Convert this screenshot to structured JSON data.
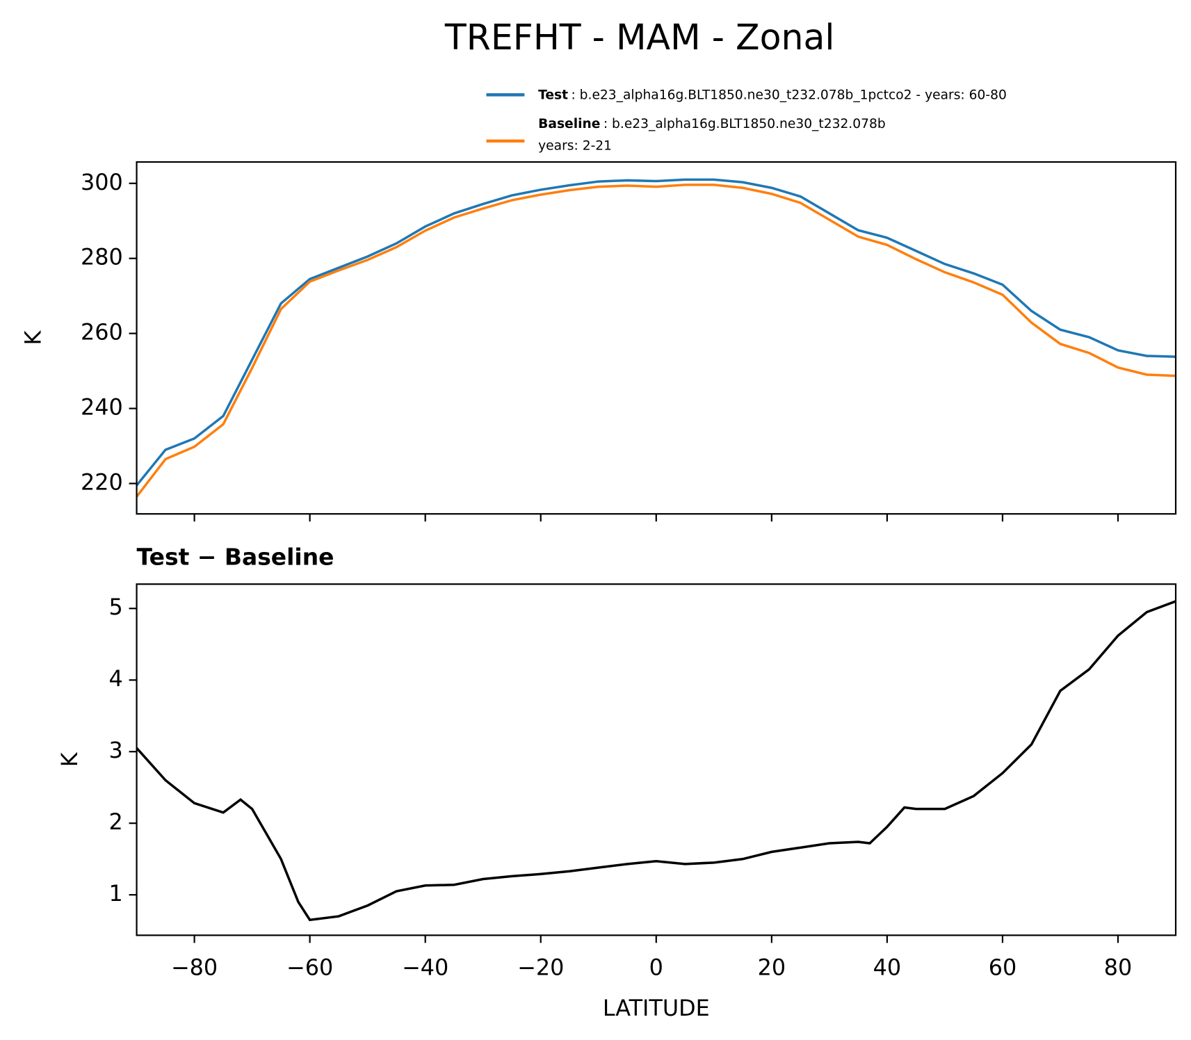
{
  "title": "TREFHT - MAM - Zonal",
  "chart_data": [
    {
      "type": "line",
      "ylabel": "K",
      "x": [
        -90,
        -85,
        -80,
        -75,
        -70,
        -65,
        -60,
        -55,
        -50,
        -45,
        -40,
        -35,
        -30,
        -25,
        -20,
        -15,
        -10,
        -5,
        0,
        5,
        10,
        15,
        20,
        25,
        30,
        35,
        40,
        45,
        50,
        55,
        60,
        65,
        70,
        75,
        80,
        85,
        90
      ],
      "series": [
        {
          "name": "Test",
          "legend_lines": [
            ": b.e23_alpha16g.BLT1850.ne30_t232.078b_1pctco2 - years: 60-80"
          ],
          "color": "#1f77b4",
          "values": [
            219.5,
            229,
            232,
            238,
            253,
            268,
            274.5,
            277.5,
            280.5,
            284,
            288.5,
            292,
            294.5,
            296.8,
            298.3,
            299.5,
            300.5,
            300.8,
            300.6,
            301,
            301,
            300.3,
            298.8,
            296.5,
            292,
            287.5,
            285.5,
            282,
            278.5,
            276,
            273,
            266,
            261,
            259,
            255.5,
            254,
            253.8
          ]
        },
        {
          "name": "Baseline",
          "legend_lines": [
            ": b.e23_alpha16g.BLT1850.ne30_t232.078b",
            "years: 2-21"
          ],
          "color": "#ff7f0e",
          "values": [
            216.5,
            226.5,
            229.8,
            235.8,
            250.8,
            266.5,
            273.8,
            276.8,
            279.6,
            283,
            287.4,
            290.9,
            293.3,
            295.5,
            297,
            298.2,
            299.1,
            299.4,
            299.1,
            299.6,
            299.6,
            298.8,
            297.2,
            294.8,
            290.3,
            285.8,
            283.6,
            279.8,
            276.3,
            273.6,
            270.3,
            262.9,
            257.2,
            254.8,
            250.9,
            249,
            248.7
          ]
        }
      ],
      "xlim": [
        -90,
        90
      ],
      "xticks": [
        -80,
        -60,
        -40,
        -20,
        0,
        20,
        40,
        60,
        80
      ],
      "ylim": [
        211.9,
        305.7
      ],
      "yticks": [
        220,
        240,
        260,
        280,
        300
      ]
    },
    {
      "type": "line",
      "title": "Test − Baseline",
      "xlabel": "LATITUDE",
      "ylabel": "K",
      "x": [
        -90,
        -85,
        -80,
        -75,
        -72,
        -70,
        -65,
        -62,
        -60,
        -55,
        -50,
        -45,
        -40,
        -35,
        -30,
        -25,
        -20,
        -15,
        -10,
        -5,
        0,
        5,
        10,
        15,
        20,
        25,
        30,
        35,
        37,
        40,
        43,
        45,
        50,
        55,
        60,
        65,
        70,
        75,
        80,
        85,
        90
      ],
      "values": [
        3.05,
        2.6,
        2.28,
        2.15,
        2.33,
        2.2,
        1.5,
        0.9,
        0.65,
        0.7,
        0.85,
        1.05,
        1.13,
        1.14,
        1.22,
        1.26,
        1.29,
        1.33,
        1.38,
        1.43,
        1.47,
        1.43,
        1.45,
        1.5,
        1.6,
        1.66,
        1.72,
        1.74,
        1.72,
        1.95,
        2.22,
        2.2,
        2.2,
        2.38,
        2.7,
        3.1,
        3.85,
        4.15,
        4.62,
        4.95,
        5.1
      ],
      "color": "#000000",
      "xlim": [
        -90,
        90
      ],
      "xticks": [
        {
          "value": -80,
          "label": "−80"
        },
        {
          "value": -60,
          "label": "−60"
        },
        {
          "value": -40,
          "label": "−40"
        },
        {
          "value": -20,
          "label": "−20"
        },
        0,
        20,
        40,
        60,
        80
      ],
      "ylim": [
        0.435,
        5.34
      ],
      "yticks": [
        1,
        2,
        3,
        4,
        5
      ]
    }
  ]
}
